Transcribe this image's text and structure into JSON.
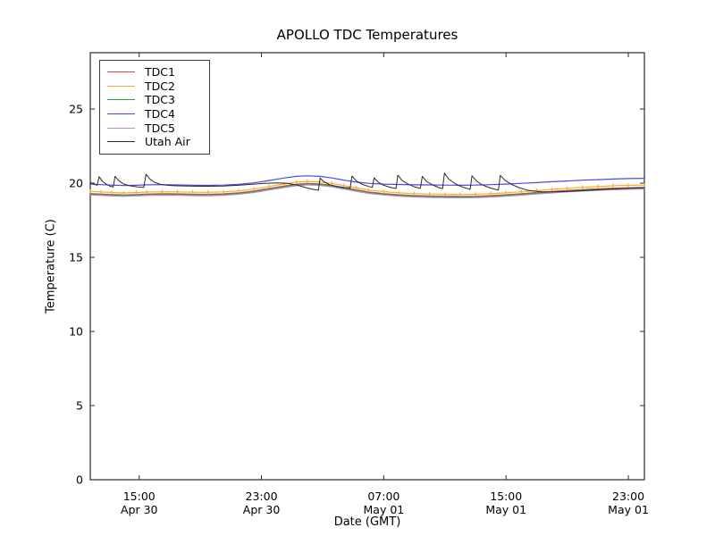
{
  "chart_data": {
    "type": "line",
    "title": "APOLLO TDC Temperatures",
    "xlabel": "Date (GMT)",
    "ylabel": "Temperature (C)",
    "x_unit": "hours since Apr 30 00:00 GMT",
    "xlim": [
      11.8,
      48.05
    ],
    "ylim": [
      0,
      28.8
    ],
    "grid": false,
    "legend_position": "upper left",
    "xticks": [
      {
        "t": 15,
        "time": "15:00",
        "date": "Apr 30"
      },
      {
        "t": 23,
        "time": "23:00",
        "date": "Apr 30"
      },
      {
        "t": 31,
        "time": "07:00",
        "date": "May 01"
      },
      {
        "t": 39,
        "time": "15:00",
        "date": "May 01"
      },
      {
        "t": 47,
        "time": "23:00",
        "date": "May 01"
      }
    ],
    "yticks": [
      0,
      5,
      10,
      15,
      20,
      25
    ],
    "series": [
      {
        "name": "TDC1",
        "color": "#e04040",
        "marker": "none",
        "points": [
          [
            11.8,
            19.3
          ],
          [
            12.5,
            19.27
          ],
          [
            13.2,
            19.24
          ],
          [
            14,
            19.21
          ],
          [
            14.8,
            19.24
          ],
          [
            15.5,
            19.27
          ],
          [
            16.5,
            19.29
          ],
          [
            17.5,
            19.28
          ],
          [
            18.5,
            19.26
          ],
          [
            19.5,
            19.25
          ],
          [
            20.5,
            19.28
          ],
          [
            21.5,
            19.35
          ],
          [
            22.5,
            19.47
          ],
          [
            23.5,
            19.64
          ],
          [
            24.5,
            19.81
          ],
          [
            25.3,
            19.93
          ],
          [
            26,
            19.98
          ],
          [
            26.8,
            19.95
          ],
          [
            27.6,
            19.85
          ],
          [
            28.4,
            19.7
          ],
          [
            29.2,
            19.55
          ],
          [
            30,
            19.41
          ],
          [
            31,
            19.3
          ],
          [
            32,
            19.22
          ],
          [
            33,
            19.17
          ],
          [
            34,
            19.14
          ],
          [
            35,
            19.12
          ],
          [
            36,
            19.11
          ],
          [
            37,
            19.12
          ],
          [
            38,
            19.16
          ],
          [
            39,
            19.22
          ],
          [
            40,
            19.29
          ],
          [
            41,
            19.37
          ],
          [
            42,
            19.44
          ],
          [
            43,
            19.51
          ],
          [
            44,
            19.57
          ],
          [
            45,
            19.62
          ],
          [
            46,
            19.66
          ],
          [
            47,
            19.69
          ],
          [
            48.05,
            19.71
          ]
        ]
      },
      {
        "name": "TDC2",
        "color": "#ffa733",
        "marker": "|",
        "points": [
          [
            11.8,
            19.45
          ],
          [
            12.5,
            19.41
          ],
          [
            13.2,
            19.37
          ],
          [
            14,
            19.34
          ],
          [
            14.8,
            19.37
          ],
          [
            15.5,
            19.4
          ],
          [
            16.5,
            19.42
          ],
          [
            17.5,
            19.41
          ],
          [
            18.5,
            19.39
          ],
          [
            19.5,
            19.38
          ],
          [
            20.5,
            19.41
          ],
          [
            21.5,
            19.48
          ],
          [
            22.5,
            19.6
          ],
          [
            23.5,
            19.78
          ],
          [
            24.5,
            19.95
          ],
          [
            25.3,
            20.07
          ],
          [
            26,
            20.12
          ],
          [
            26.8,
            20.09
          ],
          [
            27.6,
            19.99
          ],
          [
            28.4,
            19.84
          ],
          [
            29.2,
            19.68
          ],
          [
            30,
            19.54
          ],
          [
            31,
            19.43
          ],
          [
            32,
            19.35
          ],
          [
            33,
            19.3
          ],
          [
            34,
            19.27
          ],
          [
            35,
            19.25
          ],
          [
            36,
            19.24
          ],
          [
            37,
            19.25
          ],
          [
            38,
            19.29
          ],
          [
            39,
            19.35
          ],
          [
            40,
            19.42
          ],
          [
            41,
            19.5
          ],
          [
            42,
            19.58
          ],
          [
            43,
            19.65
          ],
          [
            44,
            19.72
          ],
          [
            45,
            19.77
          ],
          [
            46,
            19.82
          ],
          [
            47,
            19.85
          ],
          [
            48.05,
            19.87
          ]
        ]
      },
      {
        "name": "TDC3",
        "color": "#2f9e3f",
        "marker": "none",
        "points": [
          [
            11.8,
            19.26
          ],
          [
            12.5,
            19.23
          ],
          [
            13.2,
            19.2
          ],
          [
            14,
            19.17
          ],
          [
            14.8,
            19.2
          ],
          [
            15.5,
            19.23
          ],
          [
            16.5,
            19.25
          ],
          [
            17.5,
            19.24
          ],
          [
            18.5,
            19.22
          ],
          [
            19.5,
            19.21
          ],
          [
            20.5,
            19.24
          ],
          [
            21.5,
            19.31
          ],
          [
            22.5,
            19.43
          ],
          [
            23.5,
            19.6
          ],
          [
            24.5,
            19.77
          ],
          [
            25.3,
            19.89
          ],
          [
            26,
            19.94
          ],
          [
            26.8,
            19.91
          ],
          [
            27.6,
            19.81
          ],
          [
            28.4,
            19.66
          ],
          [
            29.2,
            19.51
          ],
          [
            30,
            19.37
          ],
          [
            31,
            19.26
          ],
          [
            32,
            19.18
          ],
          [
            33,
            19.13
          ],
          [
            34,
            19.1
          ],
          [
            35,
            19.08
          ],
          [
            36,
            19.07
          ],
          [
            37,
            19.08
          ],
          [
            38,
            19.12
          ],
          [
            39,
            19.18
          ],
          [
            40,
            19.25
          ],
          [
            41,
            19.33
          ],
          [
            42,
            19.4
          ],
          [
            43,
            19.47
          ],
          [
            44,
            19.53
          ],
          [
            45,
            19.58
          ],
          [
            46,
            19.62
          ],
          [
            47,
            19.65
          ],
          [
            48.05,
            19.67
          ]
        ]
      },
      {
        "name": "TDC5",
        "color": "#bb88d8",
        "marker": "none",
        "points": [
          [
            11.8,
            19.2
          ],
          [
            12.5,
            19.17
          ],
          [
            13.2,
            19.14
          ],
          [
            14,
            19.11
          ],
          [
            14.8,
            19.14
          ],
          [
            15.5,
            19.17
          ],
          [
            16.5,
            19.19
          ],
          [
            17.5,
            19.18
          ],
          [
            18.5,
            19.16
          ],
          [
            19.5,
            19.15
          ],
          [
            20.5,
            19.18
          ],
          [
            21.5,
            19.25
          ],
          [
            22.5,
            19.37
          ],
          [
            23.5,
            19.54
          ],
          [
            24.5,
            19.71
          ],
          [
            25.3,
            19.83
          ],
          [
            26,
            19.88
          ],
          [
            26.8,
            19.85
          ],
          [
            27.6,
            19.75
          ],
          [
            28.4,
            19.6
          ],
          [
            29.2,
            19.45
          ],
          [
            30,
            19.31
          ],
          [
            31,
            19.2
          ],
          [
            32,
            19.12
          ],
          [
            33,
            19.07
          ],
          [
            34,
            19.04
          ],
          [
            35,
            19.02
          ],
          [
            36,
            19.01
          ],
          [
            37,
            19.02
          ],
          [
            38,
            19.06
          ],
          [
            39,
            19.12
          ],
          [
            40,
            19.19
          ],
          [
            41,
            19.27
          ],
          [
            42,
            19.34
          ],
          [
            43,
            19.41
          ],
          [
            44,
            19.47
          ],
          [
            45,
            19.52
          ],
          [
            46,
            19.56
          ],
          [
            47,
            19.59
          ],
          [
            48.05,
            19.61
          ]
        ]
      },
      {
        "name": "TDC4",
        "color": "#4a4ae6",
        "marker": "none",
        "points": [
          [
            11.8,
            19.93
          ],
          [
            12.5,
            19.9
          ],
          [
            13.2,
            19.87
          ],
          [
            14,
            19.84
          ],
          [
            14.8,
            19.86
          ],
          [
            15.5,
            19.89
          ],
          [
            16.5,
            19.9
          ],
          [
            17.5,
            19.88
          ],
          [
            18.5,
            19.86
          ],
          [
            19.5,
            19.85
          ],
          [
            20.5,
            19.87
          ],
          [
            21.5,
            19.92
          ],
          [
            22.5,
            20.02
          ],
          [
            23.5,
            20.18
          ],
          [
            24.5,
            20.35
          ],
          [
            25.3,
            20.46
          ],
          [
            26,
            20.5
          ],
          [
            26.8,
            20.46
          ],
          [
            27.6,
            20.35
          ],
          [
            28.4,
            20.2
          ],
          [
            29.2,
            20.07
          ],
          [
            30,
            19.99
          ],
          [
            31,
            19.94
          ],
          [
            32,
            19.91
          ],
          [
            33,
            19.89
          ],
          [
            34,
            19.88
          ],
          [
            35,
            19.87
          ],
          [
            36,
            19.86
          ],
          [
            37,
            19.87
          ],
          [
            38,
            19.9
          ],
          [
            39,
            19.94
          ],
          [
            40,
            19.99
          ],
          [
            41,
            20.04
          ],
          [
            42,
            20.1
          ],
          [
            43,
            20.15
          ],
          [
            44,
            20.2
          ],
          [
            45,
            20.24
          ],
          [
            46,
            20.28
          ],
          [
            47,
            20.31
          ],
          [
            48.05,
            20.33
          ]
        ]
      },
      {
        "name": "Utah Air",
        "color": "#2a2a2a",
        "marker": "none",
        "points": [
          [
            11.8,
            20.06
          ],
          [
            12.05,
            19.94
          ],
          [
            12.25,
            19.86
          ],
          [
            12.38,
            20.44
          ],
          [
            12.6,
            20.12
          ],
          [
            12.85,
            19.93
          ],
          [
            13.1,
            19.8
          ],
          [
            13.3,
            19.74
          ],
          [
            13.42,
            20.46
          ],
          [
            13.7,
            20.14
          ],
          [
            14.0,
            19.94
          ],
          [
            14.4,
            19.82
          ],
          [
            14.9,
            19.75
          ],
          [
            15.3,
            19.72
          ],
          [
            15.45,
            20.6
          ],
          [
            15.7,
            20.28
          ],
          [
            16.0,
            20.06
          ],
          [
            16.4,
            19.92
          ],
          [
            16.9,
            19.85
          ],
          [
            17.5,
            19.82
          ],
          [
            18.5,
            19.8
          ],
          [
            19.5,
            19.79
          ],
          [
            20.5,
            19.81
          ],
          [
            21.5,
            19.86
          ],
          [
            22.4,
            19.93
          ],
          [
            23.2,
            19.99
          ],
          [
            24.0,
            20.02
          ],
          [
            24.7,
            19.99
          ],
          [
            25.3,
            19.88
          ],
          [
            25.8,
            19.73
          ],
          [
            26.2,
            19.62
          ],
          [
            26.55,
            19.55
          ],
          [
            26.72,
            19.52
          ],
          [
            26.84,
            20.34
          ],
          [
            27.1,
            20.08
          ],
          [
            27.45,
            19.9
          ],
          [
            27.9,
            19.78
          ],
          [
            28.4,
            19.71
          ],
          [
            28.8,
            19.68
          ],
          [
            28.92,
            20.48
          ],
          [
            29.2,
            20.15
          ],
          [
            29.6,
            19.92
          ],
          [
            30.0,
            19.78
          ],
          [
            30.25,
            19.72
          ],
          [
            30.37,
            20.36
          ],
          [
            30.65,
            20.06
          ],
          [
            31.0,
            19.86
          ],
          [
            31.45,
            19.71
          ],
          [
            31.8,
            19.64
          ],
          [
            31.92,
            20.54
          ],
          [
            32.2,
            20.18
          ],
          [
            32.6,
            19.93
          ],
          [
            33.05,
            19.74
          ],
          [
            33.4,
            19.66
          ],
          [
            33.52,
            20.46
          ],
          [
            33.8,
            20.12
          ],
          [
            34.2,
            19.88
          ],
          [
            34.6,
            19.7
          ],
          [
            34.85,
            19.63
          ],
          [
            34.97,
            20.68
          ],
          [
            35.25,
            20.28
          ],
          [
            35.65,
            19.98
          ],
          [
            36.1,
            19.76
          ],
          [
            36.5,
            19.63
          ],
          [
            36.65,
            19.58
          ],
          [
            36.77,
            20.5
          ],
          [
            37.05,
            20.16
          ],
          [
            37.4,
            19.9
          ],
          [
            37.9,
            19.7
          ],
          [
            38.3,
            19.58
          ],
          [
            38.5,
            19.54
          ],
          [
            38.62,
            20.53
          ],
          [
            38.95,
            20.18
          ],
          [
            39.35,
            19.92
          ],
          [
            39.85,
            19.7
          ],
          [
            40.35,
            19.54
          ],
          [
            40.85,
            19.46
          ],
          [
            41.4,
            19.42
          ],
          [
            42.2,
            19.41
          ],
          [
            43,
            19.44
          ],
          [
            44,
            19.49
          ],
          [
            45,
            19.55
          ],
          [
            46,
            19.61
          ],
          [
            47,
            19.66
          ],
          [
            48.05,
            19.7
          ]
        ]
      }
    ],
    "legend_order": [
      "TDC1",
      "TDC2",
      "TDC3",
      "TDC4",
      "TDC5",
      "Utah Air"
    ]
  }
}
